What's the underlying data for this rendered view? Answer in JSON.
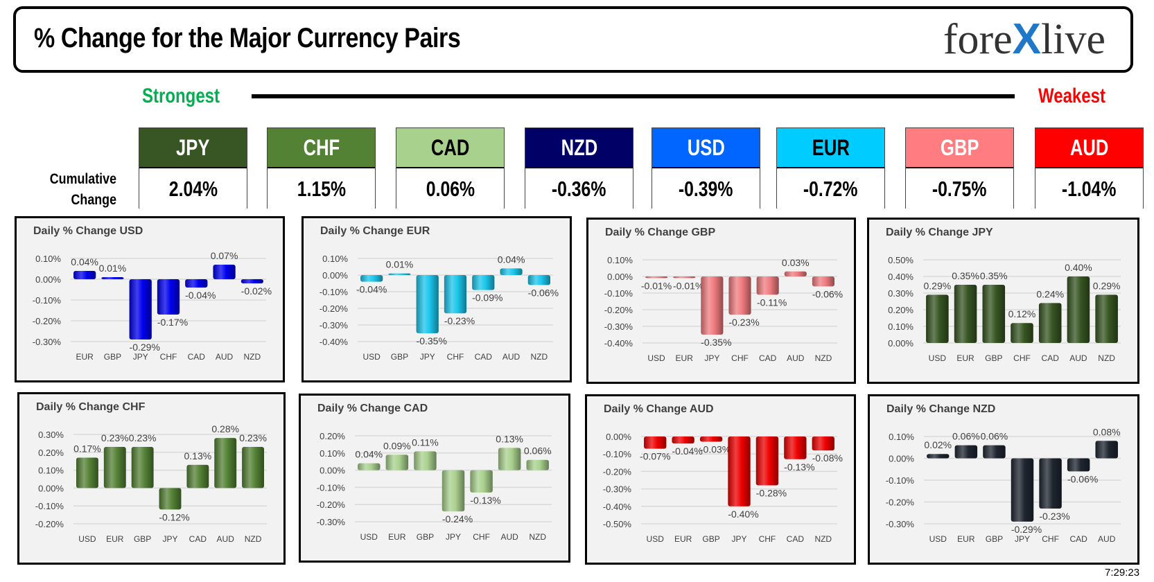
{
  "header": {
    "title": "% Change for the Major Currency Pairs",
    "logo": {
      "part1": "fore",
      "x": "X",
      "part2": "live"
    }
  },
  "ranking": {
    "strongest_label": "Strongest",
    "weakest_label": "Weakest",
    "cumulative_label_1": "Cumulative",
    "cumulative_label_2": "Change",
    "currencies": [
      {
        "code": "JPY",
        "change": "2.04%",
        "bg": "#375623",
        "fg": "#ffffff"
      },
      {
        "code": "CHF",
        "change": "1.15%",
        "bg": "#548235",
        "fg": "#ffffff"
      },
      {
        "code": "CAD",
        "change": "0.06%",
        "bg": "#a9d18e",
        "fg": "#000000"
      },
      {
        "code": "NZD",
        "change": "-0.36%",
        "bg": "#000066",
        "fg": "#ffffff"
      },
      {
        "code": "USD",
        "change": "-0.39%",
        "bg": "#0066ff",
        "fg": "#ffffff"
      },
      {
        "code": "EUR",
        "change": "-0.72%",
        "bg": "#00ccff",
        "fg": "#000000"
      },
      {
        "code": "GBP",
        "change": "-0.75%",
        "bg": "#ff7c80",
        "fg": "#ffffff"
      },
      {
        "code": "AUD",
        "change": "-1.04%",
        "bg": "#ff0000",
        "fg": "#ffffff"
      }
    ]
  },
  "timestamp": "7:29:23",
  "chart_data": [
    {
      "type": "bar",
      "title": "Daily % Change USD",
      "categories": [
        "EUR",
        "GBP",
        "JPY",
        "CHF",
        "CAD",
        "AUD",
        "NZD"
      ],
      "values": [
        0.04,
        0.01,
        -0.29,
        -0.17,
        -0.04,
        0.07,
        -0.02
      ],
      "labels": [
        "0.04%",
        "0.01%",
        "-0.29%",
        "-0.17%",
        "-0.04%",
        "0.07%",
        "-0.02%"
      ],
      "ylim": [
        -0.3,
        0.1
      ],
      "yticks": [
        "0.10%",
        "0.00%",
        "-0.10%",
        "-0.20%",
        "-0.30%"
      ],
      "color": "#0000ee",
      "grid": true
    },
    {
      "type": "bar",
      "title": "Daily % Change EUR",
      "categories": [
        "USD",
        "GBP",
        "JPY",
        "CHF",
        "CAD",
        "AUD",
        "NZD"
      ],
      "values": [
        -0.04,
        0.01,
        -0.35,
        -0.23,
        -0.09,
        0.04,
        -0.06
      ],
      "labels": [
        "-0.04%",
        "0.01%",
        "-0.35%",
        "-0.23%",
        "-0.09%",
        "0.04%",
        "-0.06%"
      ],
      "ylim": [
        -0.4,
        0.1
      ],
      "yticks": [
        "0.10%",
        "0.00%",
        "-0.10%",
        "-0.20%",
        "-0.30%",
        "-0.40%"
      ],
      "color": "#1cc6ec",
      "grid": true
    },
    {
      "type": "bar",
      "title": "Daily % Change GBP",
      "categories": [
        "USD",
        "EUR",
        "JPY",
        "CHF",
        "CAD",
        "AUD",
        "NZD"
      ],
      "values": [
        -0.01,
        -0.01,
        -0.35,
        -0.23,
        -0.11,
        0.03,
        -0.06
      ],
      "labels": [
        "-0.01%",
        "-0.01%",
        "-0.35%",
        "-0.23%",
        "-0.11%",
        "0.03%",
        "-0.06%"
      ],
      "ylim": [
        -0.4,
        0.1
      ],
      "yticks": [
        "0.10%",
        "0.00%",
        "-0.10%",
        "-0.20%",
        "-0.30%",
        "-0.40%"
      ],
      "color": "#f07c80",
      "grid": true
    },
    {
      "type": "bar",
      "title": "Daily % Change JPY",
      "categories": [
        "USD",
        "EUR",
        "GBP",
        "CHF",
        "CAD",
        "AUD",
        "NZD"
      ],
      "values": [
        0.29,
        0.35,
        0.35,
        0.12,
        0.24,
        0.4,
        0.29
      ],
      "labels": [
        "0.29%",
        "0.35%",
        "0.35%",
        "0.12%",
        "0.24%",
        "0.40%",
        "0.29%"
      ],
      "ylim": [
        0,
        0.5
      ],
      "yticks": [
        "0.50%",
        "0.40%",
        "0.30%",
        "0.20%",
        "0.10%",
        "0.00%"
      ],
      "color": "#375623",
      "grid": true
    },
    {
      "type": "bar",
      "title": "Daily % Change CHF",
      "categories": [
        "USD",
        "EUR",
        "GBP",
        "JPY",
        "CAD",
        "AUD",
        "NZD"
      ],
      "values": [
        0.17,
        0.23,
        0.23,
        -0.12,
        0.13,
        0.28,
        0.23
      ],
      "labels": [
        "0.17%",
        "0.23%",
        "0.23%",
        "-0.12%",
        "0.13%",
        "0.28%",
        "0.23%"
      ],
      "ylim": [
        -0.2,
        0.3
      ],
      "yticks": [
        "0.30%",
        "0.20%",
        "0.10%",
        "0.00%",
        "-0.10%",
        "-0.20%"
      ],
      "color": "#548235",
      "grid": true
    },
    {
      "type": "bar",
      "title": "Daily % Change CAD",
      "categories": [
        "USD",
        "EUR",
        "GBP",
        "JPY",
        "CHF",
        "AUD",
        "NZD"
      ],
      "values": [
        0.04,
        0.09,
        0.11,
        -0.24,
        -0.13,
        0.13,
        0.06
      ],
      "labels": [
        "0.04%",
        "0.09%",
        "0.11%",
        "-0.24%",
        "-0.13%",
        "0.13%",
        "0.06%"
      ],
      "ylim": [
        -0.3,
        0.2
      ],
      "yticks": [
        "0.20%",
        "0.10%",
        "0.00%",
        "-0.10%",
        "-0.20%",
        "-0.30%"
      ],
      "color": "#a9d18e",
      "grid": true
    },
    {
      "type": "bar",
      "title": "Daily % Change AUD",
      "categories": [
        "USD",
        "EUR",
        "GBP",
        "JPY",
        "CHF",
        "CAD",
        "NZD"
      ],
      "values": [
        -0.07,
        -0.04,
        -0.03,
        -0.4,
        -0.28,
        -0.13,
        -0.08
      ],
      "labels": [
        "-0.07%",
        "-0.04%",
        "-0.03%",
        "-0.40%",
        "-0.28%",
        "-0.13%",
        "-0.08%"
      ],
      "ylim": [
        -0.5,
        0
      ],
      "yticks": [
        "0.00%",
        "-0.10%",
        "-0.20%",
        "-0.30%",
        "-0.40%",
        "-0.50%"
      ],
      "color": "#ee0000",
      "grid": true
    },
    {
      "type": "bar",
      "title": "Daily % Change NZD",
      "categories": [
        "USD",
        "EUR",
        "GBP",
        "JPY",
        "CHF",
        "CAD",
        "AUD"
      ],
      "values": [
        0.02,
        0.06,
        0.06,
        -0.29,
        -0.23,
        -0.06,
        0.08
      ],
      "labels": [
        "0.02%",
        "0.06%",
        "0.06%",
        "-0.29%",
        "-0.23%",
        "-0.06%",
        "0.08%"
      ],
      "ylim": [
        -0.3,
        0.1
      ],
      "yticks": [
        "0.10%",
        "0.00%",
        "-0.10%",
        "-0.20%",
        "-0.30%"
      ],
      "color": "#1f2630",
      "grid": true
    }
  ]
}
